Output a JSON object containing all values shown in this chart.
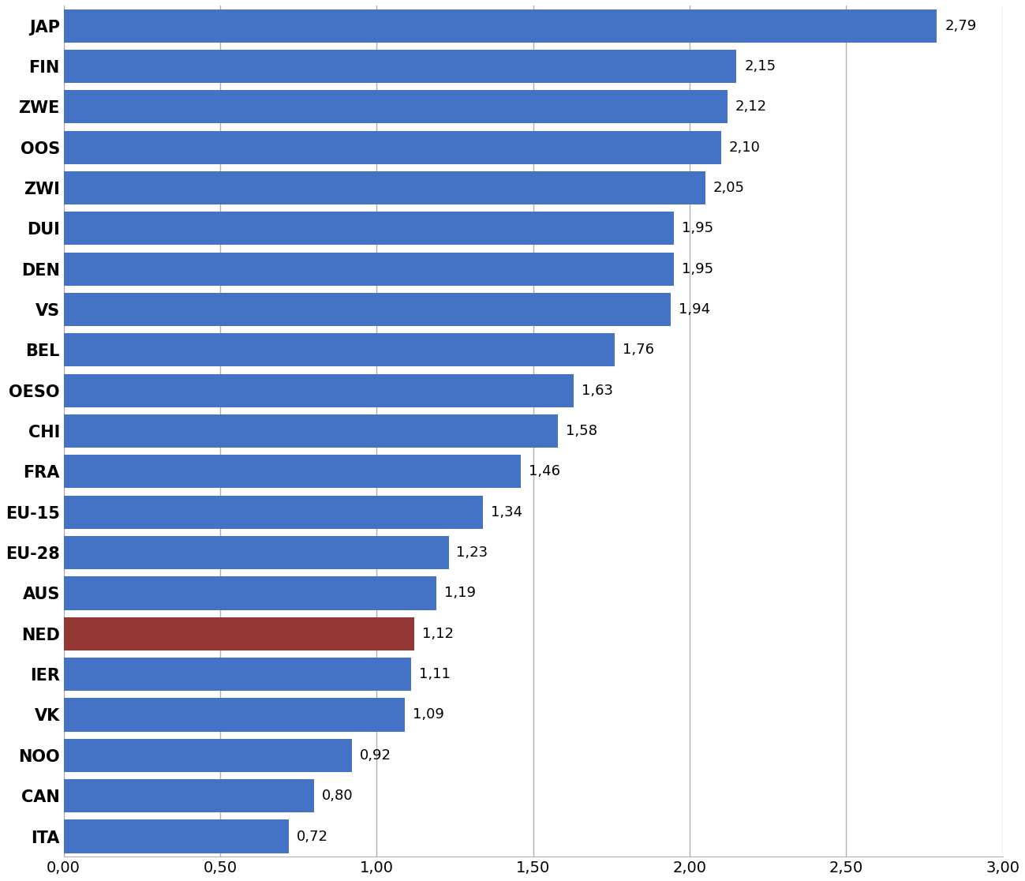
{
  "categories": [
    "ITA",
    "CAN",
    "NOO",
    "VK",
    "IER",
    "NED",
    "AUS",
    "EU-28",
    "EU-15",
    "FRA",
    "CHI",
    "OESO",
    "BEL",
    "VS",
    "DEN",
    "DUI",
    "ZWI",
    "OOS",
    "ZWE",
    "FIN",
    "JAP"
  ],
  "values": [
    0.72,
    0.8,
    0.92,
    1.09,
    1.11,
    1.12,
    1.19,
    1.23,
    1.34,
    1.46,
    1.58,
    1.63,
    1.76,
    1.94,
    1.95,
    1.95,
    2.05,
    2.1,
    2.12,
    2.15,
    2.79
  ],
  "bar_colors": [
    "#4472c4",
    "#4472c4",
    "#4472c4",
    "#4472c4",
    "#4472c4",
    "#943634",
    "#4472c4",
    "#4472c4",
    "#4472c4",
    "#4472c4",
    "#4472c4",
    "#4472c4",
    "#4472c4",
    "#4472c4",
    "#4472c4",
    "#4472c4",
    "#4472c4",
    "#4472c4",
    "#4472c4",
    "#4472c4",
    "#4472c4"
  ],
  "xlim": [
    0,
    3.0
  ],
  "xticks": [
    0.0,
    0.5,
    1.0,
    1.5,
    2.0,
    2.5,
    3.0
  ],
  "xtick_labels": [
    "0,00",
    "0,50",
    "1,00",
    "1,50",
    "2,00",
    "2,50",
    "3,00"
  ],
  "background_color": "#ffffff",
  "bar_height": 0.82,
  "label_fontsize": 14,
  "tick_fontsize": 14,
  "value_fontsize": 13,
  "grid_color": "#b0b0b0",
  "grid_linewidth": 1.0,
  "ytick_fontsize": 15,
  "ytick_fontweight": "bold"
}
